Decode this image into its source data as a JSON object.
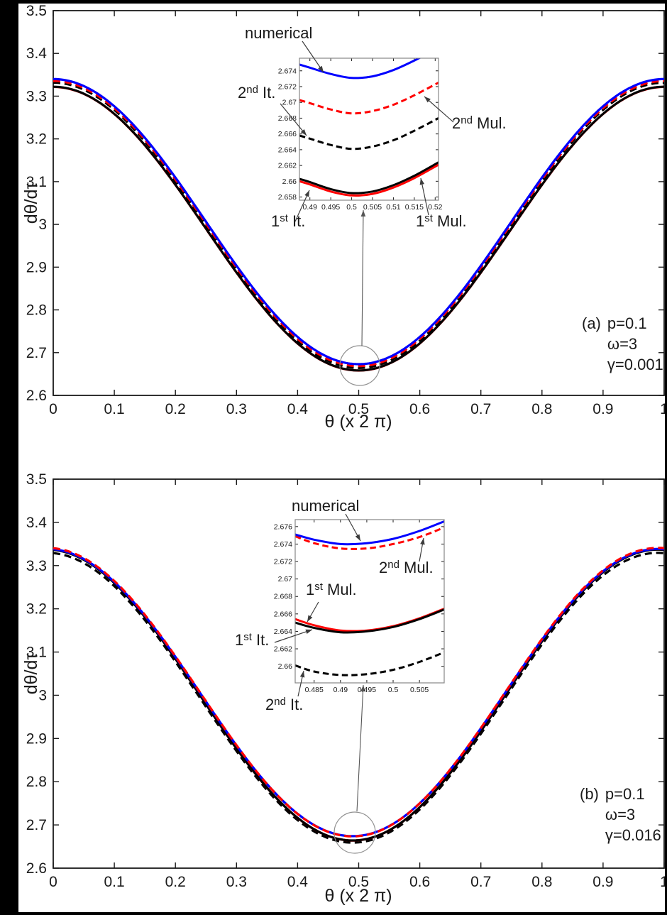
{
  "figure": {
    "background": "#ffffff",
    "border_color": "#000000"
  },
  "colors": {
    "numerical": "#0000ff",
    "multiple_scales": "#ff0000",
    "iteration": "#000000",
    "axis": "#1a1a1a",
    "callout_arrow": "#3c3c3c",
    "inset_frame": "#878787",
    "zoom_circle": "#909090"
  },
  "callouts": {
    "a": {
      "numerical": {
        "text": "numerical"
      },
      "second_it": {
        "base": "2",
        "sup": "nd",
        "rest": " It."
      },
      "second_mul": {
        "base": "2",
        "sup": "nd",
        "rest": " Mul."
      },
      "first_it": {
        "base": "1",
        "sup": "st",
        "rest": " It."
      },
      "first_mul": {
        "base": "1",
        "sup": "st",
        "rest": " Mul."
      }
    },
    "b": {
      "numerical": {
        "text": "numerical"
      },
      "second_it": {
        "base": "2",
        "sup": "nd",
        "rest": " It."
      },
      "second_mul": {
        "base": "2",
        "sup": "nd",
        "rest": " Mul."
      },
      "first_it": {
        "base": "1",
        "sup": "st",
        "rest": " It."
      },
      "first_mul": {
        "base": "1",
        "sup": "st",
        "rest": " Mul."
      }
    }
  },
  "chart_data": [
    {
      "type": "line",
      "panel": "a",
      "xlabel": "θ (x 2 π)",
      "ylabel": "dθ/dτ",
      "xlim": [
        0,
        1
      ],
      "ylim": [
        2.6,
        3.5
      ],
      "grid": false,
      "legend_position": "callout-labels-on-inset",
      "xtick_v": [
        0,
        0.1,
        0.2,
        0.3,
        0.4,
        0.5,
        0.6,
        0.7,
        0.8,
        0.9,
        1
      ],
      "xtick_labels": [
        "0",
        "0.1",
        "0.2",
        "0.3",
        "0.4",
        "0.5",
        "0.6",
        "0.7",
        "0.8",
        "0.9",
        "1"
      ],
      "ytick_v": [
        2.6,
        2.7,
        2.8,
        2.9,
        3,
        3.1,
        3.2,
        3.3,
        3.4,
        3.5
      ],
      "ytick_labels": [
        "2.6",
        "2.7",
        "2.8",
        "2.9",
        "3",
        "3.1",
        "3.2",
        "3.3",
        "3.4",
        "3.5"
      ],
      "annotation": {
        "tag": "(a)",
        "lines": [
          "p=0.1",
          "ω=3",
          "γ=0.001"
        ]
      },
      "sample_x": [
        0,
        0.1,
        0.2,
        0.3,
        0.4,
        0.5,
        0.6,
        0.7,
        0.8,
        0.9,
        1
      ],
      "series": [
        {
          "name": "1st Mul.",
          "color": "#ff0000",
          "style": "solid",
          "max": 3.3216,
          "min": 2.6581,
          "x_of_min": 0.5,
          "y_samples": [
            3.322,
            3.258,
            3.092,
            2.887,
            2.721,
            2.658,
            2.721,
            2.887,
            3.092,
            3.258,
            3.322
          ]
        },
        {
          "name": "1st It.",
          "color": "#000000",
          "style": "solid",
          "max": 3.322,
          "min": 2.6584,
          "x_of_min": 0.5,
          "y_samples": [
            3.322,
            3.259,
            3.093,
            2.888,
            2.722,
            2.658,
            2.722,
            2.888,
            3.093,
            3.259,
            3.322
          ]
        },
        {
          "name": "2nd It.",
          "color": "#000000",
          "style": "dashed",
          "max": 3.3315,
          "min": 2.6641,
          "x_of_min": 0.5,
          "y_samples": [
            3.332,
            3.268,
            3.101,
            2.895,
            2.728,
            2.664,
            2.728,
            2.895,
            3.101,
            3.268,
            3.332
          ]
        },
        {
          "name": "2nd Mul.",
          "color": "#ff0000",
          "style": "dashed",
          "max": 3.3355,
          "min": 2.6686,
          "x_of_min": 0.5,
          "y_samples": [
            3.336,
            3.272,
            3.105,
            2.899,
            2.732,
            2.669,
            2.732,
            2.899,
            3.105,
            3.272,
            3.336
          ]
        },
        {
          "name": "numerical",
          "color": "#0000ff",
          "style": "solid",
          "max": 3.34,
          "min": 2.6731,
          "x_of_min": 0.5,
          "y_samples": [
            3.34,
            3.276,
            3.11,
            2.904,
            2.737,
            2.673,
            2.737,
            2.904,
            3.11,
            3.276,
            3.34
          ]
        }
      ],
      "inset": {
        "xlim": [
          0.4875,
          0.5208
        ],
        "ylim": [
          2.6576,
          2.6756
        ],
        "xtick_v": [
          0.49,
          0.495,
          0.5,
          0.505,
          0.51,
          0.515,
          0.52
        ],
        "xtick_labels": [
          "0.49",
          "0.495",
          "0.5",
          "0.505",
          "0.51",
          "0.515",
          "0.52"
        ],
        "ytick_v": [
          2.658,
          2.66,
          2.662,
          2.664,
          2.666,
          2.668,
          2.67,
          2.672,
          2.674
        ],
        "ytick_labels": [
          "2.658",
          "2.66",
          "2.662",
          "2.664",
          "2.666",
          "2.668",
          "2.67",
          "2.672",
          "2.674"
        ],
        "series": [
          {
            "name": "1st Mul.",
            "color": "#ff0000",
            "style": "solid",
            "x": [
              0.4875,
              0.49,
              0.495,
              0.5,
              0.505,
              0.51,
              0.515,
              0.5208
            ],
            "y": [
              2.66,
              2.6596,
              2.6587,
              2.6582,
              2.6584,
              2.6592,
              2.6604,
              2.6621
            ]
          },
          {
            "name": "1st It.",
            "color": "#000000",
            "style": "solid",
            "x": [
              0.4875,
              0.49,
              0.495,
              0.5,
              0.505,
              0.51,
              0.515,
              0.5208
            ],
            "y": [
              2.6603,
              2.6599,
              2.659,
              2.6585,
              2.6587,
              2.6595,
              2.6607,
              2.6624
            ]
          },
          {
            "name": "2nd It.",
            "color": "#000000",
            "style": "dashed",
            "x": [
              0.4875,
              0.49,
              0.495,
              0.5,
              0.505,
              0.51,
              0.515,
              0.5208
            ],
            "y": [
              2.6658,
              2.6654,
              2.6646,
              2.6641,
              2.6644,
              2.6652,
              2.6664,
              2.668
            ]
          },
          {
            "name": "2nd Mul.",
            "color": "#ff0000",
            "style": "dashed",
            "x": [
              0.4875,
              0.49,
              0.495,
              0.5,
              0.505,
              0.51,
              0.515,
              0.5208
            ],
            "y": [
              2.6703,
              2.6699,
              2.6691,
              2.6686,
              2.6689,
              2.6697,
              2.6709,
              2.6725
            ]
          },
          {
            "name": "numerical",
            "color": "#0000ff",
            "style": "solid",
            "x": [
              0.4875,
              0.49,
              0.495,
              0.5,
              0.505,
              0.51,
              0.515,
              0.5208
            ],
            "y": [
              2.6748,
              2.6744,
              2.6736,
              2.6731,
              2.6733,
              2.6741,
              2.6753,
              2.6769
            ]
          }
        ]
      }
    },
    {
      "type": "line",
      "panel": "b",
      "xlabel": "θ (x 2 π)",
      "ylabel": "dθ/dτ",
      "xlim": [
        0,
        1
      ],
      "ylim": [
        2.6,
        3.5
      ],
      "grid": false,
      "legend_position": "callout-labels-on-inset",
      "xtick_v": [
        0,
        0.1,
        0.2,
        0.3,
        0.4,
        0.5,
        0.6,
        0.7,
        0.8,
        0.9,
        1
      ],
      "xtick_labels": [
        "0",
        "0.1",
        "0.2",
        "0.3",
        "0.4",
        "0.5",
        "0.6",
        "0.7",
        "0.8",
        "0.9",
        "1"
      ],
      "ytick_v": [
        2.6,
        2.7,
        2.8,
        2.9,
        3,
        3.1,
        3.2,
        3.3,
        3.4,
        3.5
      ],
      "ytick_labels": [
        "2.6",
        "2.7",
        "2.8",
        "2.9",
        "3",
        "3.1",
        "3.2",
        "3.3",
        "3.4",
        "3.5"
      ],
      "annotation": {
        "tag": "(b)",
        "lines": [
          "p=0.1",
          "ω=3",
          "γ=0.016"
        ]
      },
      "sample_x": [
        0,
        0.1,
        0.2,
        0.3,
        0.4,
        0.5,
        0.6,
        0.7,
        0.8,
        0.9,
        1
      ],
      "series": [
        {
          "name": "2nd It.",
          "color": "#000000",
          "style": "dashed",
          "max": 3.3295,
          "min": 2.659,
          "x_of_min": 0.49,
          "y_samples": [
            3.329,
            3.252,
            3.078,
            2.871,
            2.711,
            2.66,
            2.736,
            2.911,
            3.118,
            3.277,
            3.329
          ]
        },
        {
          "name": "1st It.",
          "color": "#ff0000",
          "style": "solid",
          "max": 3.3375,
          "min": 2.6639,
          "x_of_min": 0.49,
          "y_samples": [
            3.337,
            3.26,
            3.085,
            2.877,
            2.717,
            2.665,
            2.741,
            2.918,
            3.124,
            3.285,
            3.337
          ]
        },
        {
          "name": "1st Mul.",
          "color": "#000000",
          "style": "solid",
          "max": 3.337,
          "min": 2.664,
          "x_of_min": 0.49,
          "y_samples": [
            3.336,
            3.26,
            3.084,
            2.877,
            2.716,
            2.665,
            2.741,
            2.917,
            3.124,
            3.285,
            3.336
          ]
        },
        {
          "name": "numerical",
          "color": "#0000ff",
          "style": "solid",
          "max": 3.3385,
          "min": 2.674,
          "x_of_min": 0.49,
          "y_samples": [
            3.338,
            3.262,
            3.089,
            2.884,
            2.726,
            2.675,
            2.75,
            2.924,
            3.129,
            3.287,
            3.338
          ]
        },
        {
          "name": "2nd Mul.",
          "color": "#ff0000",
          "style": "dashed",
          "max": 3.341,
          "min": 2.6735,
          "x_of_min": 0.49,
          "y_samples": [
            3.34,
            3.264,
            3.09,
            2.884,
            2.725,
            2.674,
            2.75,
            2.924,
            3.13,
            3.289,
            3.34
          ]
        }
      ],
      "inset": {
        "xlim": [
          0.4814,
          0.5097
        ],
        "ylim": [
          2.6581,
          2.6768
        ],
        "xtick_v": [
          0.485,
          0.49,
          0.495,
          0.5,
          0.505
        ],
        "xtick_labels": [
          "0.485",
          "0.49",
          "0.495",
          "0.5",
          "0.505"
        ],
        "ytick_v": [
          2.66,
          2.662,
          2.664,
          2.666,
          2.668,
          2.67,
          2.672,
          2.674,
          2.676
        ],
        "ytick_labels": [
          "2.66",
          "2.662",
          "2.664",
          "2.666",
          "2.668",
          "2.67",
          "2.672",
          "2.674",
          "2.676"
        ],
        "series": [
          {
            "name": "2nd It.",
            "color": "#000000",
            "style": "dashed",
            "x": [
              0.4814,
              0.485,
              0.49,
              0.495,
              0.5,
              0.505,
              0.5097
            ],
            "y": [
              2.6601,
              2.6594,
              2.659,
              2.6591,
              2.6596,
              2.6605,
              2.6616
            ]
          },
          {
            "name": "1st It.",
            "color": "#ff0000",
            "style": "solid",
            "x": [
              0.4814,
              0.485,
              0.49,
              0.495,
              0.5,
              0.505,
              0.5097
            ],
            "y": [
              2.6654,
              2.6647,
              2.6641,
              2.6641,
              2.6646,
              2.6655,
              2.6666
            ]
          },
          {
            "name": "1st Mul.",
            "color": "#000000",
            "style": "solid",
            "x": [
              0.4814,
              0.485,
              0.49,
              0.495,
              0.5,
              0.505,
              0.5097
            ],
            "y": [
              2.665,
              2.6644,
              2.6639,
              2.664,
              2.6645,
              2.6654,
              2.6665
            ]
          },
          {
            "name": "2nd Mul.",
            "color": "#ff0000",
            "style": "dashed",
            "x": [
              0.4814,
              0.485,
              0.49,
              0.495,
              0.5,
              0.505,
              0.5097
            ],
            "y": [
              2.6749,
              2.6741,
              2.6735,
              2.6735,
              2.674,
              2.6748,
              2.6759
            ]
          },
          {
            "name": "numerical",
            "color": "#0000ff",
            "style": "solid",
            "x": [
              0.4814,
              0.485,
              0.49,
              0.495,
              0.5,
              0.505,
              0.5097
            ],
            "y": [
              2.6751,
              2.6745,
              2.674,
              2.6741,
              2.6746,
              2.6755,
              2.6766
            ]
          }
        ]
      }
    }
  ]
}
